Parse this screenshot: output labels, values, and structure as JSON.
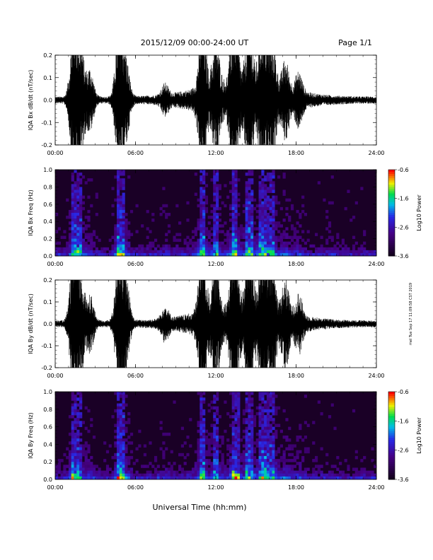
{
  "header": {
    "title": "2015/12/09   00:00-24:00 UT",
    "page": "Page 1/1"
  },
  "xlabel": "Universal Time (hh:mm)",
  "side_note": "mel Tue Sep 17 11:09:58 CST 2019",
  "chart_data": [
    {
      "type": "line",
      "panel": "bx_wave",
      "ylabel": "IQA Bx dB/dt (nT/sec)",
      "xlim": [
        0,
        24
      ],
      "ylim": [
        -0.2,
        0.2
      ],
      "xticks": [
        "00:00",
        "06:00",
        "12:00",
        "18:00",
        "24:00"
      ],
      "yticks": [
        "0.2",
        "0.1",
        "0.0",
        "-0.1",
        "-0.2"
      ],
      "bursts": [
        {
          "t": 1.4,
          "amp": 0.26
        },
        {
          "t": 1.9,
          "amp": 0.18
        },
        {
          "t": 2.6,
          "amp": 0.1
        },
        {
          "t": 4.8,
          "amp": 0.3
        },
        {
          "t": 5.3,
          "amp": 0.12
        },
        {
          "t": 8.2,
          "amp": 0.04
        },
        {
          "t": 11.0,
          "amp": 0.24
        },
        {
          "t": 12.0,
          "amp": 0.16
        },
        {
          "t": 13.4,
          "amp": 0.26
        },
        {
          "t": 14.5,
          "amp": 0.22
        },
        {
          "t": 15.5,
          "amp": 0.25
        },
        {
          "t": 16.2,
          "amp": 0.18
        },
        {
          "t": 17.2,
          "amp": 0.1
        },
        {
          "t": 18.2,
          "amp": 0.07
        }
      ]
    },
    {
      "type": "heatmap",
      "panel": "bx_spec",
      "ylabel": "IQA Bx Freq (Hz)",
      "xlim": [
        0,
        24
      ],
      "ylim": [
        0,
        1.0
      ],
      "xticks": [
        "00:00",
        "06:00",
        "12:00",
        "18:00",
        "24:00"
      ],
      "yticks": [
        "1.0",
        "0.8",
        "0.6",
        "0.4",
        "0.2",
        "0.0"
      ],
      "colorbar": {
        "label": "Log10 Power",
        "ticks": [
          "-0.6",
          "-1.6",
          "-2.6",
          "-3.6"
        ],
        "range": [
          -3.6,
          -0.6
        ]
      }
    },
    {
      "type": "line",
      "panel": "by_wave",
      "ylabel": "IQA By dB/dt (nT/sec)",
      "xlim": [
        0,
        24
      ],
      "ylim": [
        -0.2,
        0.2
      ],
      "xticks": [
        "00:00",
        "06:00",
        "12:00",
        "18:00",
        "24:00"
      ],
      "yticks": [
        "0.2",
        "0.1",
        "0.0",
        "-0.1",
        "-0.2"
      ],
      "bursts": [
        {
          "t": 1.4,
          "amp": 0.28
        },
        {
          "t": 1.9,
          "amp": 0.16
        },
        {
          "t": 2.6,
          "amp": 0.1
        },
        {
          "t": 4.8,
          "amp": 0.3
        },
        {
          "t": 5.3,
          "amp": 0.14
        },
        {
          "t": 8.2,
          "amp": 0.05
        },
        {
          "t": 11.0,
          "amp": 0.26
        },
        {
          "t": 12.0,
          "amp": 0.18
        },
        {
          "t": 13.4,
          "amp": 0.27
        },
        {
          "t": 14.5,
          "amp": 0.24
        },
        {
          "t": 15.5,
          "amp": 0.26
        },
        {
          "t": 16.2,
          "amp": 0.19
        },
        {
          "t": 17.2,
          "amp": 0.12
        },
        {
          "t": 18.2,
          "amp": 0.08
        }
      ]
    },
    {
      "type": "heatmap",
      "panel": "by_spec",
      "ylabel": "IQA By Freq (Hz)",
      "xlim": [
        0,
        24
      ],
      "ylim": [
        0,
        1.0
      ],
      "xticks": [
        "00:00",
        "06:00",
        "12:00",
        "18:00",
        "24:00"
      ],
      "yticks": [
        "1.0",
        "0.8",
        "0.6",
        "0.4",
        "0.2",
        "0.0"
      ],
      "colorbar": {
        "label": "Log10 Power",
        "ticks": [
          "-0.6",
          "-1.6",
          "-2.6",
          "-3.6"
        ],
        "range": [
          -3.6,
          -0.6
        ]
      }
    }
  ]
}
